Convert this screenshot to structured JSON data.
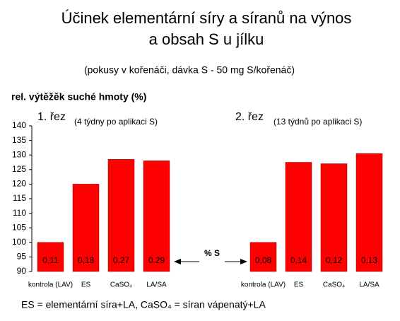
{
  "chart_data": {
    "type": "bar",
    "title": [
      "Účinek elementární síry a síranů na výnos",
      "a obsah S u jílku"
    ],
    "subtitle": "(pokusy v kořenáči, dávka S - 50 mg S/kořenáč)",
    "y_label": "rel. výtěžěk suché hmoty (%)",
    "categories": [
      "kontrola (LAV)",
      "ES",
      "CaSO₄",
      "LA/SA"
    ],
    "series": [
      {
        "name": "1. řez",
        "note": "(4 týdny po aplikaci S)",
        "color": "#ff0000",
        "values": [
          100,
          120,
          128.5,
          128
        ],
        "s_labels": [
          "0,11",
          "0,18",
          "0,27",
          "0,29"
        ]
      },
      {
        "name": "2. řez",
        "note": "(13 týdnů po aplikaci S)",
        "color": "#ff0000",
        "values": [
          100,
          127.5,
          127,
          130.5
        ],
        "s_labels": [
          "0,08",
          "0,14",
          "0,12",
          "0,13"
        ]
      }
    ],
    "annotation": "% S",
    "footnote": "ES = elementární síra+LA,  CaSO₄ = síran vápenatý+LA",
    "ylim": [
      90,
      140
    ],
    "yticks": [
      90,
      95,
      100,
      105,
      110,
      115,
      120,
      125,
      130,
      135,
      140
    ]
  }
}
